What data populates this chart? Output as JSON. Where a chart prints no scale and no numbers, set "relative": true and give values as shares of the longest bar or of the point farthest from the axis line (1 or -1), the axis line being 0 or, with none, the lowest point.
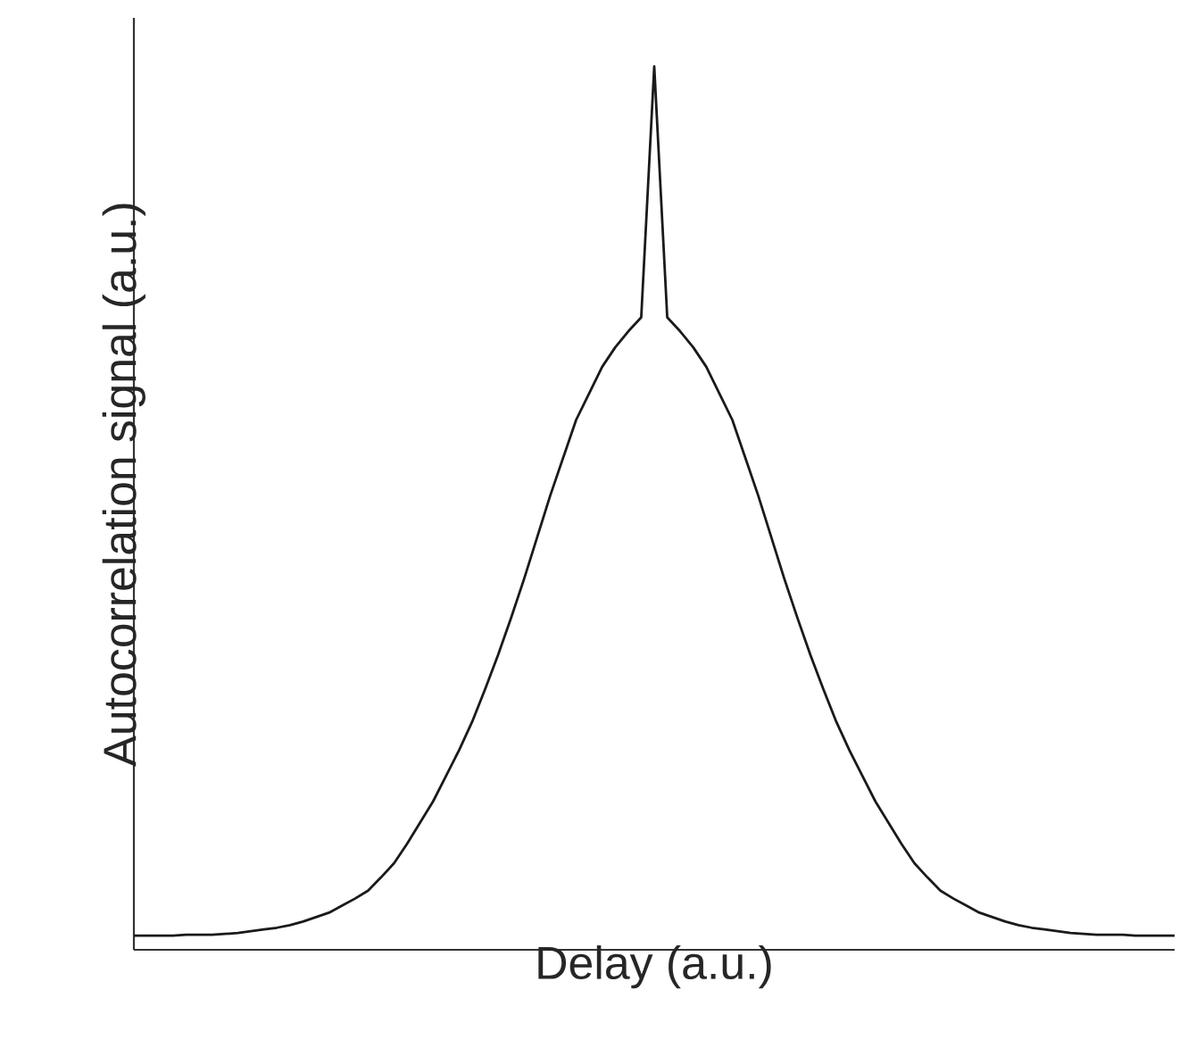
{
  "chart_data": {
    "type": "line",
    "xlabel": "Delay (a.u.)",
    "ylabel": "Autocorrelation signal (a.u.)",
    "relative": true,
    "color": "#1a1a1a",
    "categories": [
      null,
      null,
      null,
      null,
      null,
      null,
      null,
      null,
      null,
      null,
      null,
      null,
      null,
      null,
      null,
      null,
      null,
      null,
      null,
      null,
      null,
      null,
      null,
      null,
      null,
      null,
      null,
      null,
      null,
      null,
      null,
      null,
      null,
      null,
      null,
      null,
      null,
      null,
      null,
      null,
      null,
      null,
      null,
      null,
      null,
      null,
      null,
      null,
      null,
      null,
      null,
      null,
      null,
      null,
      null,
      null,
      null,
      null,
      null,
      null,
      null,
      null,
      null,
      null,
      null,
      null,
      null,
      null,
      null,
      null,
      null,
      null,
      null,
      null,
      null,
      null,
      null,
      null,
      null,
      null,
      null
    ],
    "values": [
      0.016,
      0.016,
      0.016,
      0.016,
      0.017,
      0.017,
      0.017,
      0.018,
      0.019,
      0.021,
      0.023,
      0.025,
      0.028,
      0.032,
      0.037,
      0.042,
      0.05,
      0.058,
      0.067,
      0.082,
      0.098,
      0.12,
      0.144,
      0.168,
      0.197,
      0.226,
      0.258,
      0.295,
      0.334,
      0.376,
      0.42,
      0.467,
      0.514,
      0.557,
      0.6,
      0.63,
      0.66,
      0.682,
      0.7,
      0.716,
      1.0,
      0.716,
      0.7,
      0.682,
      0.66,
      0.63,
      0.6,
      0.557,
      0.514,
      0.467,
      0.42,
      0.376,
      0.334,
      0.295,
      0.258,
      0.226,
      0.197,
      0.168,
      0.144,
      0.12,
      0.098,
      0.082,
      0.067,
      0.058,
      0.05,
      0.042,
      0.037,
      0.032,
      0.028,
      0.025,
      0.023,
      0.021,
      0.019,
      0.018,
      0.017,
      0.017,
      0.017,
      0.016,
      0.016,
      0.016,
      0.016
    ]
  }
}
